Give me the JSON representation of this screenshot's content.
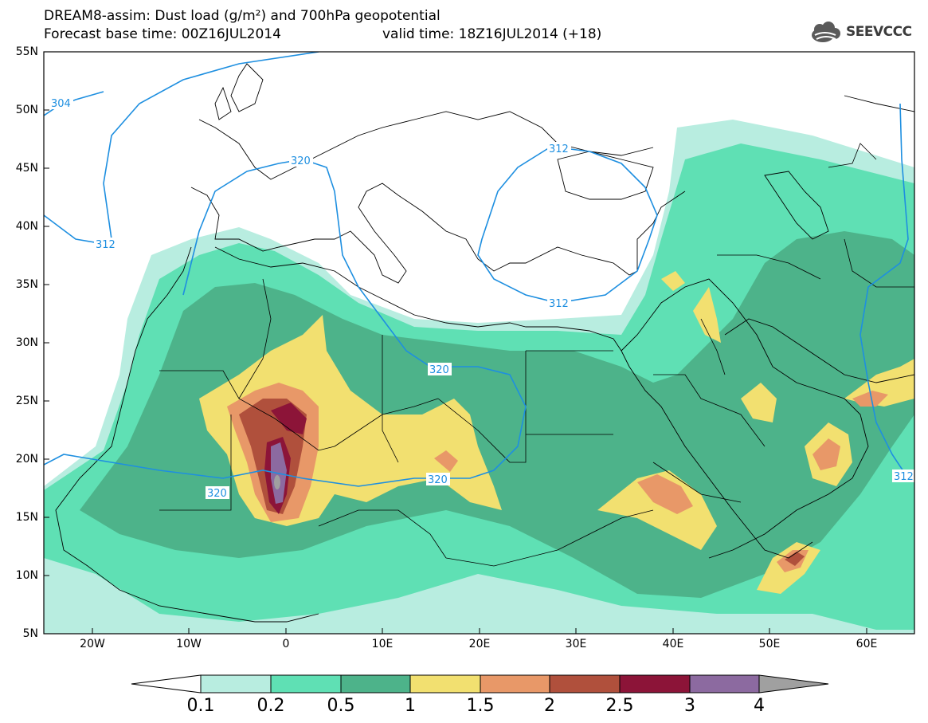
{
  "header": {
    "title": "DREAM8-assim: Dust load (g/m²) and 700hPa geopotential",
    "base_time": "Forecast base time: 00Z16JUL2014",
    "valid_time": "valid time: 18Z16JUL2014 (+18)",
    "logo_text": "SEEVCCC"
  },
  "map": {
    "lon_range": [
      -25,
      65
    ],
    "lat_range": [
      5,
      55
    ],
    "lat_ticks": [
      "55N",
      "50N",
      "45N",
      "40N",
      "35N",
      "30N",
      "25N",
      "20N",
      "15N",
      "10N",
      "5N"
    ],
    "lon_ticks": [
      "20W",
      "10W",
      "0",
      "10E",
      "20E",
      "30E",
      "40E",
      "50E",
      "60E"
    ]
  },
  "contours": {
    "geopotential_labels": [
      "304",
      "312",
      "320",
      "312",
      "320",
      "320",
      "320",
      "312",
      "312"
    ],
    "color": "#1e8fe0"
  },
  "colorbar": {
    "labels": [
      "0.1",
      "0.2",
      "0.5",
      "1",
      "1.5",
      "2",
      "2.5",
      "3",
      "4"
    ],
    "colors": [
      "#ffffff",
      "#b8ede0",
      "#5fe0b4",
      "#4db38a",
      "#f2e070",
      "#e89868",
      "#b0503c",
      "#8c1438",
      "#8c6aa0",
      "#a0a0a0"
    ]
  }
}
